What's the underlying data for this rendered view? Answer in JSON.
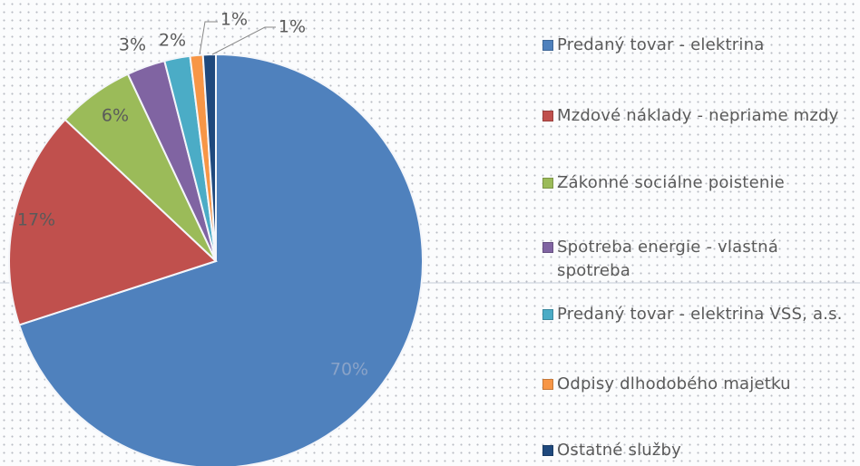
{
  "chart_data": {
    "type": "pie",
    "categories": [
      "Predaný tovar - elektrina",
      "Mzdové náklady - nepriame mzdy",
      "Zákonné sociálne poistenie",
      "Spotreba energie - vlastná spotreba",
      "Predaný tovar - elektrina VSS, a.s.",
      "Odpisy dlhodobého majetku",
      "Ostatné služby"
    ],
    "values": [
      70,
      17,
      6,
      3,
      2,
      1,
      1
    ],
    "value_labels": [
      "70%",
      "17%",
      "6%",
      "3%",
      "2%",
      "1%",
      "1%"
    ],
    "colors": [
      "#4f81bd",
      "#c0504d",
      "#9bbb59",
      "#8064a2",
      "#4bacc6",
      "#f79646",
      "#1f497d"
    ],
    "legend": "right"
  }
}
